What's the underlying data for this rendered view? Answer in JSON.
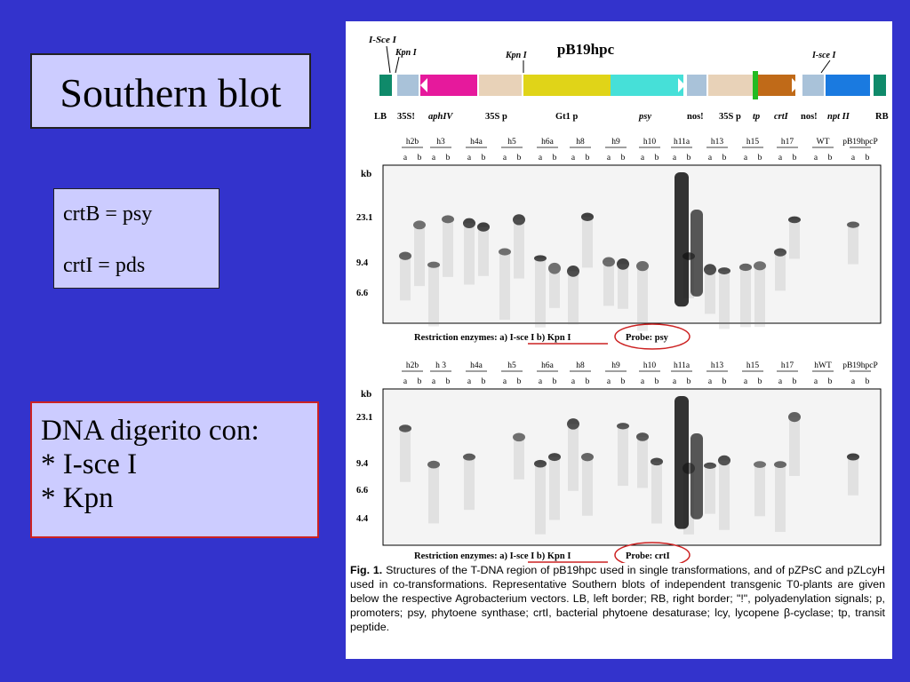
{
  "slide": {
    "title": "Southern blot",
    "genes": [
      "crtB = psy",
      "crtI = pds"
    ],
    "digestion": [
      "DNA digerito con:",
      "* I-sce I",
      "* Kpn"
    ]
  },
  "figure": {
    "construct": {
      "name": "pB19hpc",
      "site_labels": [
        "I-Sce I",
        "Kpn I",
        "Kpn I",
        "I-sce I"
      ],
      "segment_labels": [
        "LB",
        "35S!",
        "aphIV",
        "35S p",
        "Gt1 p",
        "psy",
        "nos!",
        "35S p",
        "tp",
        "crtI",
        "nos!",
        "npt II",
        "RB"
      ]
    },
    "lanes": [
      "h2b",
      "h3",
      "h4a",
      "h5",
      "h6a",
      "h8",
      "h9",
      "h10",
      "h11a",
      "h13",
      "h15",
      "h17",
      "WT",
      "pB19hpcP"
    ],
    "lanes_blot2": [
      "h2b",
      "h 3",
      "h4a",
      "h5",
      "h6a",
      "h8",
      "h9",
      "h10",
      "h11a",
      "h13",
      "h15",
      "h17",
      "hWT",
      "pB19hpcP"
    ],
    "lane_ab": [
      "a",
      "b"
    ],
    "blot1": {
      "kb_label": "kb",
      "markers": [
        "23.1",
        "9.4",
        "6.6"
      ],
      "enzymes_text": "Restriction enzymes: a) I-sce I  b) Kpn I",
      "probe_text": "Probe: psy"
    },
    "blot2": {
      "kb_label": "kb",
      "markers": [
        "23.1",
        "9.4",
        "6.6",
        "4.4"
      ],
      "enzymes_text": "Restriction enzymes: a) I-sce I  b) Kpn I",
      "probe_text": "Probe: crtI"
    },
    "caption": {
      "label": "Fig. 1.",
      "text": "Structures of the T-DNA region of pB19hpc used in single transformations, and of pZPsC and pZLcyH used in co-transformations. Representative Southern blots of independent transgenic T0-plants are given below the respective Agrobacterium vectors. LB, left border; RB, right border; \"!\", polyadenylation signals; p, promoters; psy, phytoene synthase; crtI, bacterial phytoene desaturase; lcy, lycopene β-cyclase; tp, transit peptide."
    }
  },
  "colors": {
    "background": "#3333cc",
    "box_fill": "#ccccff",
    "probe_circle": "#cc2222"
  }
}
